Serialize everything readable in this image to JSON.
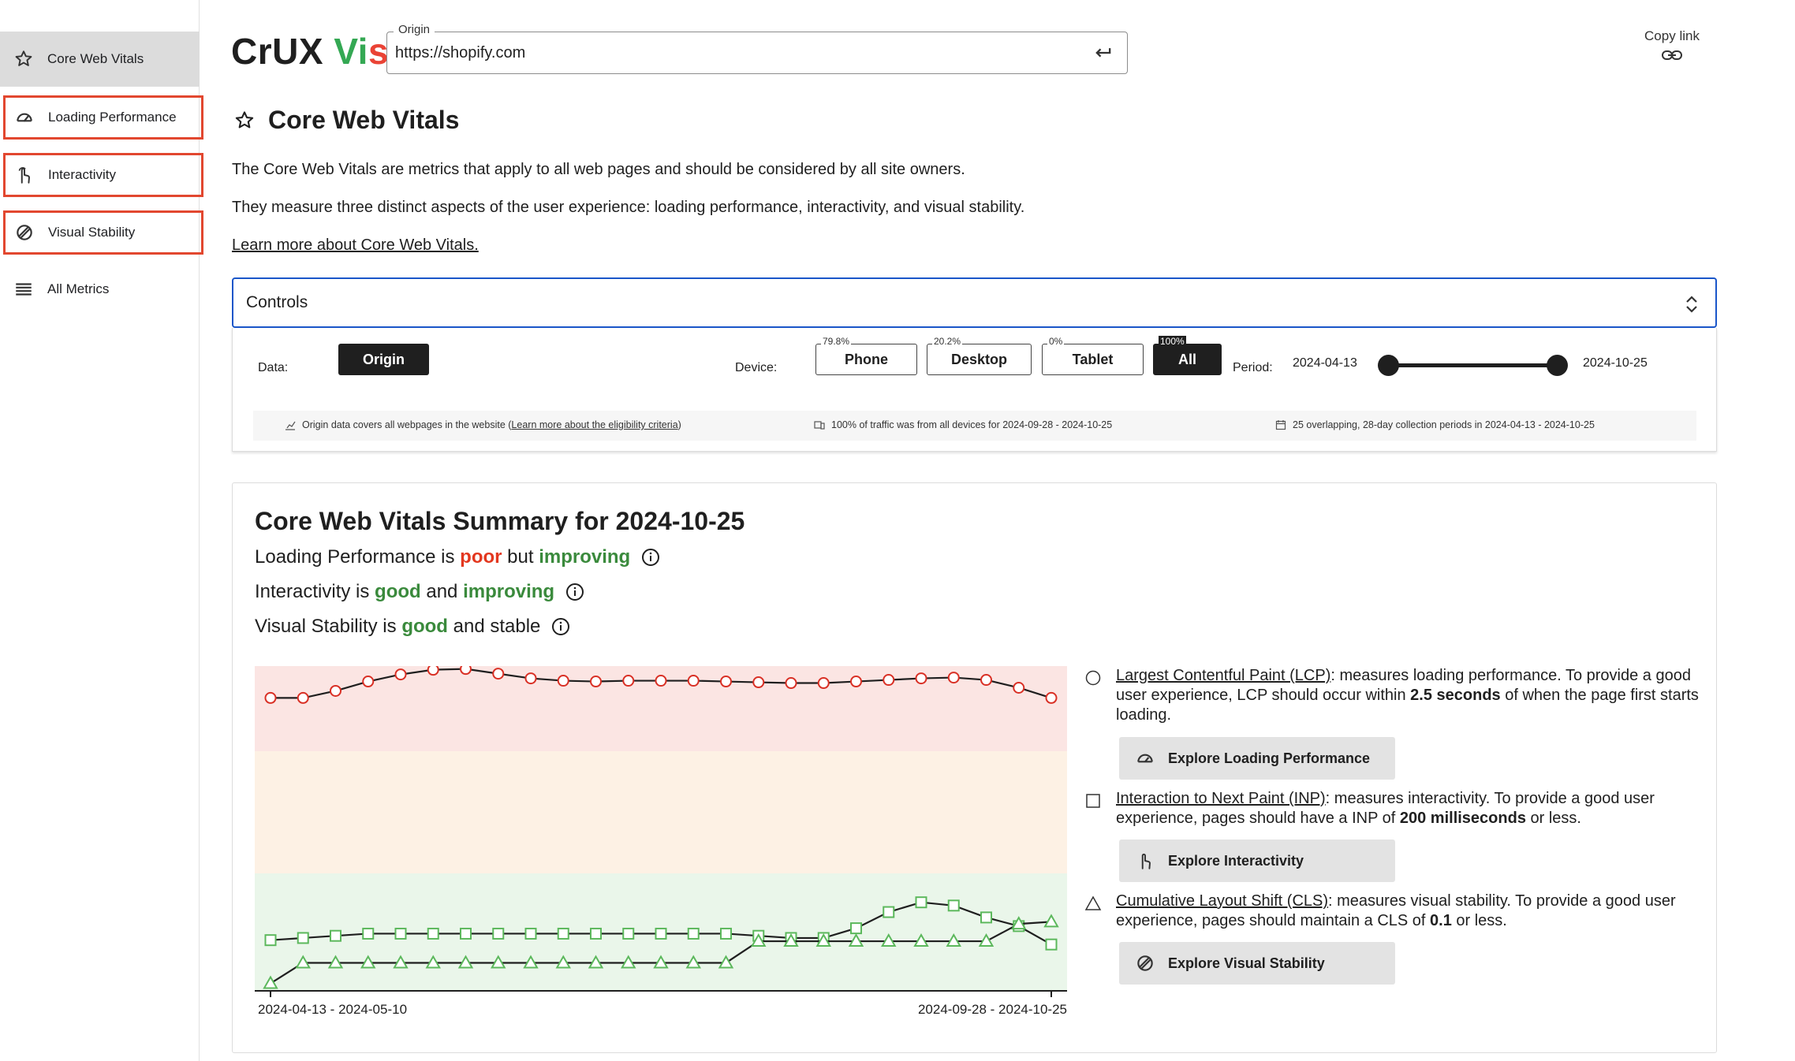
{
  "sidebar": {
    "items": [
      {
        "label": "Core Web Vitals",
        "icon": "star-icon"
      },
      {
        "label": "Loading Performance",
        "icon": "speedometer-icon"
      },
      {
        "label": "Interactivity",
        "icon": "pointer-hand-icon"
      },
      {
        "label": "Visual Stability",
        "icon": "stability-icon"
      },
      {
        "label": "All Metrics",
        "icon": "list-icon"
      }
    ]
  },
  "header": {
    "logo_part1": "CrUX",
    "logo_v": "V",
    "logo_i": "i",
    "logo_s": "s",
    "origin_legend": "Origin",
    "origin_value": "https://shopify.com",
    "copy_link": "Copy link"
  },
  "page": {
    "title": "Core Web Vitals",
    "para1": "The Core Web Vitals are metrics that apply to all web pages and should be considered by all site owners.",
    "para2": "They measure three distinct aspects of the user experience: loading performance, interactivity, and visual stability.",
    "learn_more": "Learn more about Core Web Vitals."
  },
  "controls": {
    "header": "Controls",
    "data_label": "Data:",
    "origin_button": "Origin",
    "device_label": "Device:",
    "devices": [
      {
        "label": "Phone",
        "pct": "79.8%"
      },
      {
        "label": "Desktop",
        "pct": "20.2%"
      },
      {
        "label": "Tablet",
        "pct": "0%"
      },
      {
        "label": "All",
        "pct": "100%"
      }
    ],
    "period_label": "Period:",
    "period_start": "2024-04-13",
    "period_end": "2024-10-25",
    "info1_text": "Origin data covers all webpages in the website (",
    "info1_link": "Learn more about the eligibility criteria",
    "info1_end": ")",
    "info2": "100% of traffic was from all devices for 2024-09-28 - 2024-10-25",
    "info3": "25 overlapping, 28-day collection periods in 2024-04-13 - 2024-10-25"
  },
  "summary": {
    "title": "Core Web Vitals Summary for 2024-10-25",
    "lines": [
      {
        "metric": "Loading Performance",
        "is": " is ",
        "status": "poor",
        "conj": " but ",
        "trend": "improving"
      },
      {
        "metric": "Interactivity",
        "is": " is ",
        "status": "good",
        "conj": " and ",
        "trend": "improving"
      },
      {
        "metric": "Visual Stability",
        "is": " is ",
        "status": "good",
        "conj": " and stable",
        "trend": ""
      }
    ],
    "legend": [
      {
        "link": "Largest Contentful Paint (LCP)",
        "pre": ": measures loading performance. To provide a good user experience, LCP should occur within ",
        "bold": "2.5 seconds",
        "post": " of when the page first starts loading.",
        "button": "Explore Loading Performance"
      },
      {
        "link": "Interaction to Next Paint (INP)",
        "pre": ": measures interactivity. To provide a good user experience, pages should have a INP of ",
        "bold": "200 milliseconds",
        "post": " or less.",
        "button": "Explore Interactivity"
      },
      {
        "link": "Cumulative Layout Shift (CLS)",
        "pre": ": measures visual stability. To provide a good user experience, pages should maintain a CLS of ",
        "bold": "0.1",
        "post": " or less.",
        "button": "Explore Visual Stability"
      }
    ]
  },
  "chart_data": {
    "type": "line",
    "x_first_label": "2024-04-13 - 2024-05-10",
    "x_last_label": "2024-09-28 - 2024-10-25",
    "bands": {
      "poor": "#fbe5e3",
      "needs_improvement": "#fdf1e4",
      "good": "#eaf6ea"
    },
    "series": [
      {
        "name": "LCP",
        "marker": "circle",
        "color": "#d93025",
        "values": [
          0.64,
          0.64,
          0.73,
          0.85,
          0.94,
          1.0,
          1.01,
          0.95,
          0.89,
          0.86,
          0.85,
          0.86,
          0.86,
          0.86,
          0.85,
          0.84,
          0.83,
          0.83,
          0.85,
          0.87,
          0.89,
          0.9,
          0.87,
          0.77,
          0.64
        ]
      },
      {
        "name": "INP",
        "marker": "square",
        "color": "#5cb85c",
        "values": [
          0.44,
          0.46,
          0.48,
          0.5,
          0.5,
          0.5,
          0.5,
          0.5,
          0.5,
          0.5,
          0.5,
          0.5,
          0.5,
          0.5,
          0.5,
          0.48,
          0.46,
          0.46,
          0.55,
          0.7,
          0.79,
          0.76,
          0.65,
          0.57,
          0.4
        ]
      },
      {
        "name": "CLS",
        "marker": "triangle",
        "color": "#5cb85c",
        "values": [
          0.04,
          0.23,
          0.23,
          0.23,
          0.23,
          0.23,
          0.23,
          0.23,
          0.23,
          0.23,
          0.23,
          0.23,
          0.23,
          0.23,
          0.23,
          0.43,
          0.43,
          0.43,
          0.43,
          0.43,
          0.43,
          0.43,
          0.43,
          0.59,
          0.61
        ]
      }
    ]
  }
}
